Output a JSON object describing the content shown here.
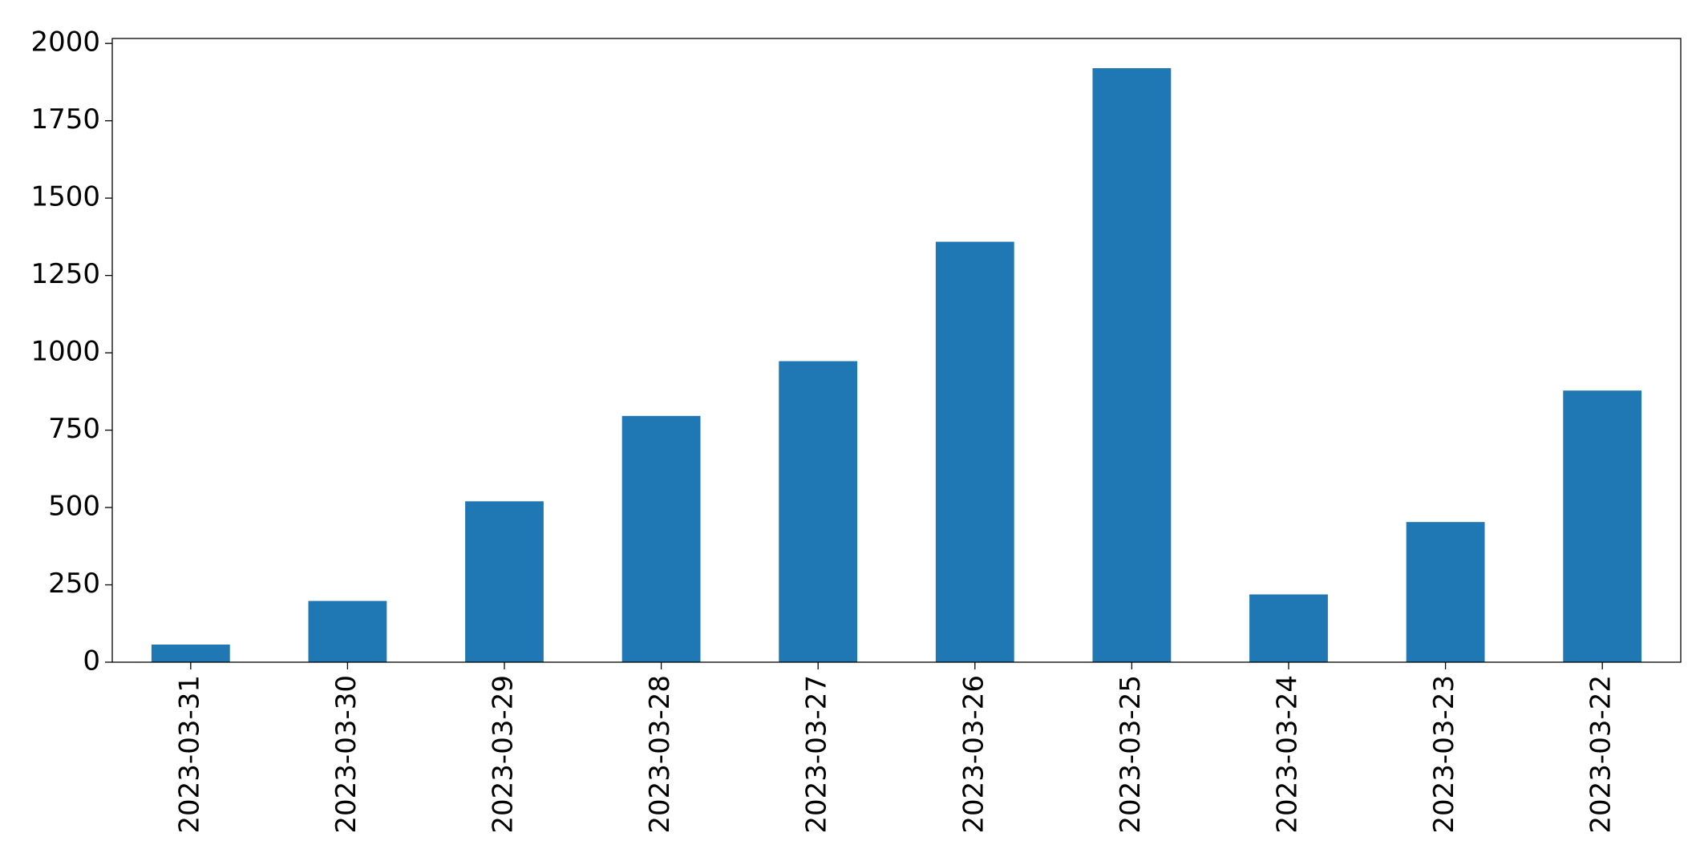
{
  "chart_data": {
    "type": "bar",
    "categories": [
      "2023-03-31",
      "2023-03-30",
      "2023-03-29",
      "2023-03-28",
      "2023-03-27",
      "2023-03-26",
      "2023-03-25",
      "2023-03-24",
      "2023-03-23",
      "2023-03-22"
    ],
    "values": [
      57,
      198,
      520,
      796,
      973,
      1359,
      1920,
      219,
      453,
      878
    ],
    "color": "#1f77b4",
    "ylim": [
      0,
      2016
    ],
    "yticks": [
      0,
      250,
      500,
      750,
      1000,
      1250,
      1500,
      1750,
      2000
    ],
    "grid": false
  }
}
